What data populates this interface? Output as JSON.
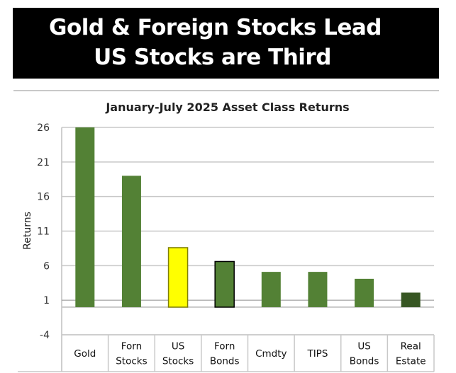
{
  "header": {
    "line1": "Gold & Foreign Stocks Lead",
    "line2": "US Stocks are Third"
  },
  "chart_data": {
    "type": "bar",
    "title": "January-July  2025 Asset Class Returns",
    "xlabel": "",
    "ylabel": "Returns",
    "ylim": [
      -4,
      26
    ],
    "yticks": [
      26,
      21,
      16,
      11,
      6,
      1,
      -4
    ],
    "grid": true,
    "categories": [
      [
        "Gold"
      ],
      [
        "Forn",
        "Stocks"
      ],
      [
        "US",
        "Stocks"
      ],
      [
        "Forn",
        "Bonds"
      ],
      [
        "Cmdty"
      ],
      [
        "TIPS"
      ],
      [
        "US",
        "Bonds"
      ],
      [
        "Real",
        "Estate"
      ]
    ],
    "values": [
      26.0,
      19.0,
      8.6,
      6.6,
      5.1,
      5.1,
      4.1,
      2.1
    ],
    "colors": [
      "#538135",
      "#538135",
      "#ffff00",
      "#538135",
      "#538135",
      "#538135",
      "#538135",
      "#375623"
    ],
    "borders": [
      "none",
      "none",
      "#7f7f00",
      "#000000",
      "none",
      "none",
      "none",
      "none"
    ],
    "category_table": true
  }
}
